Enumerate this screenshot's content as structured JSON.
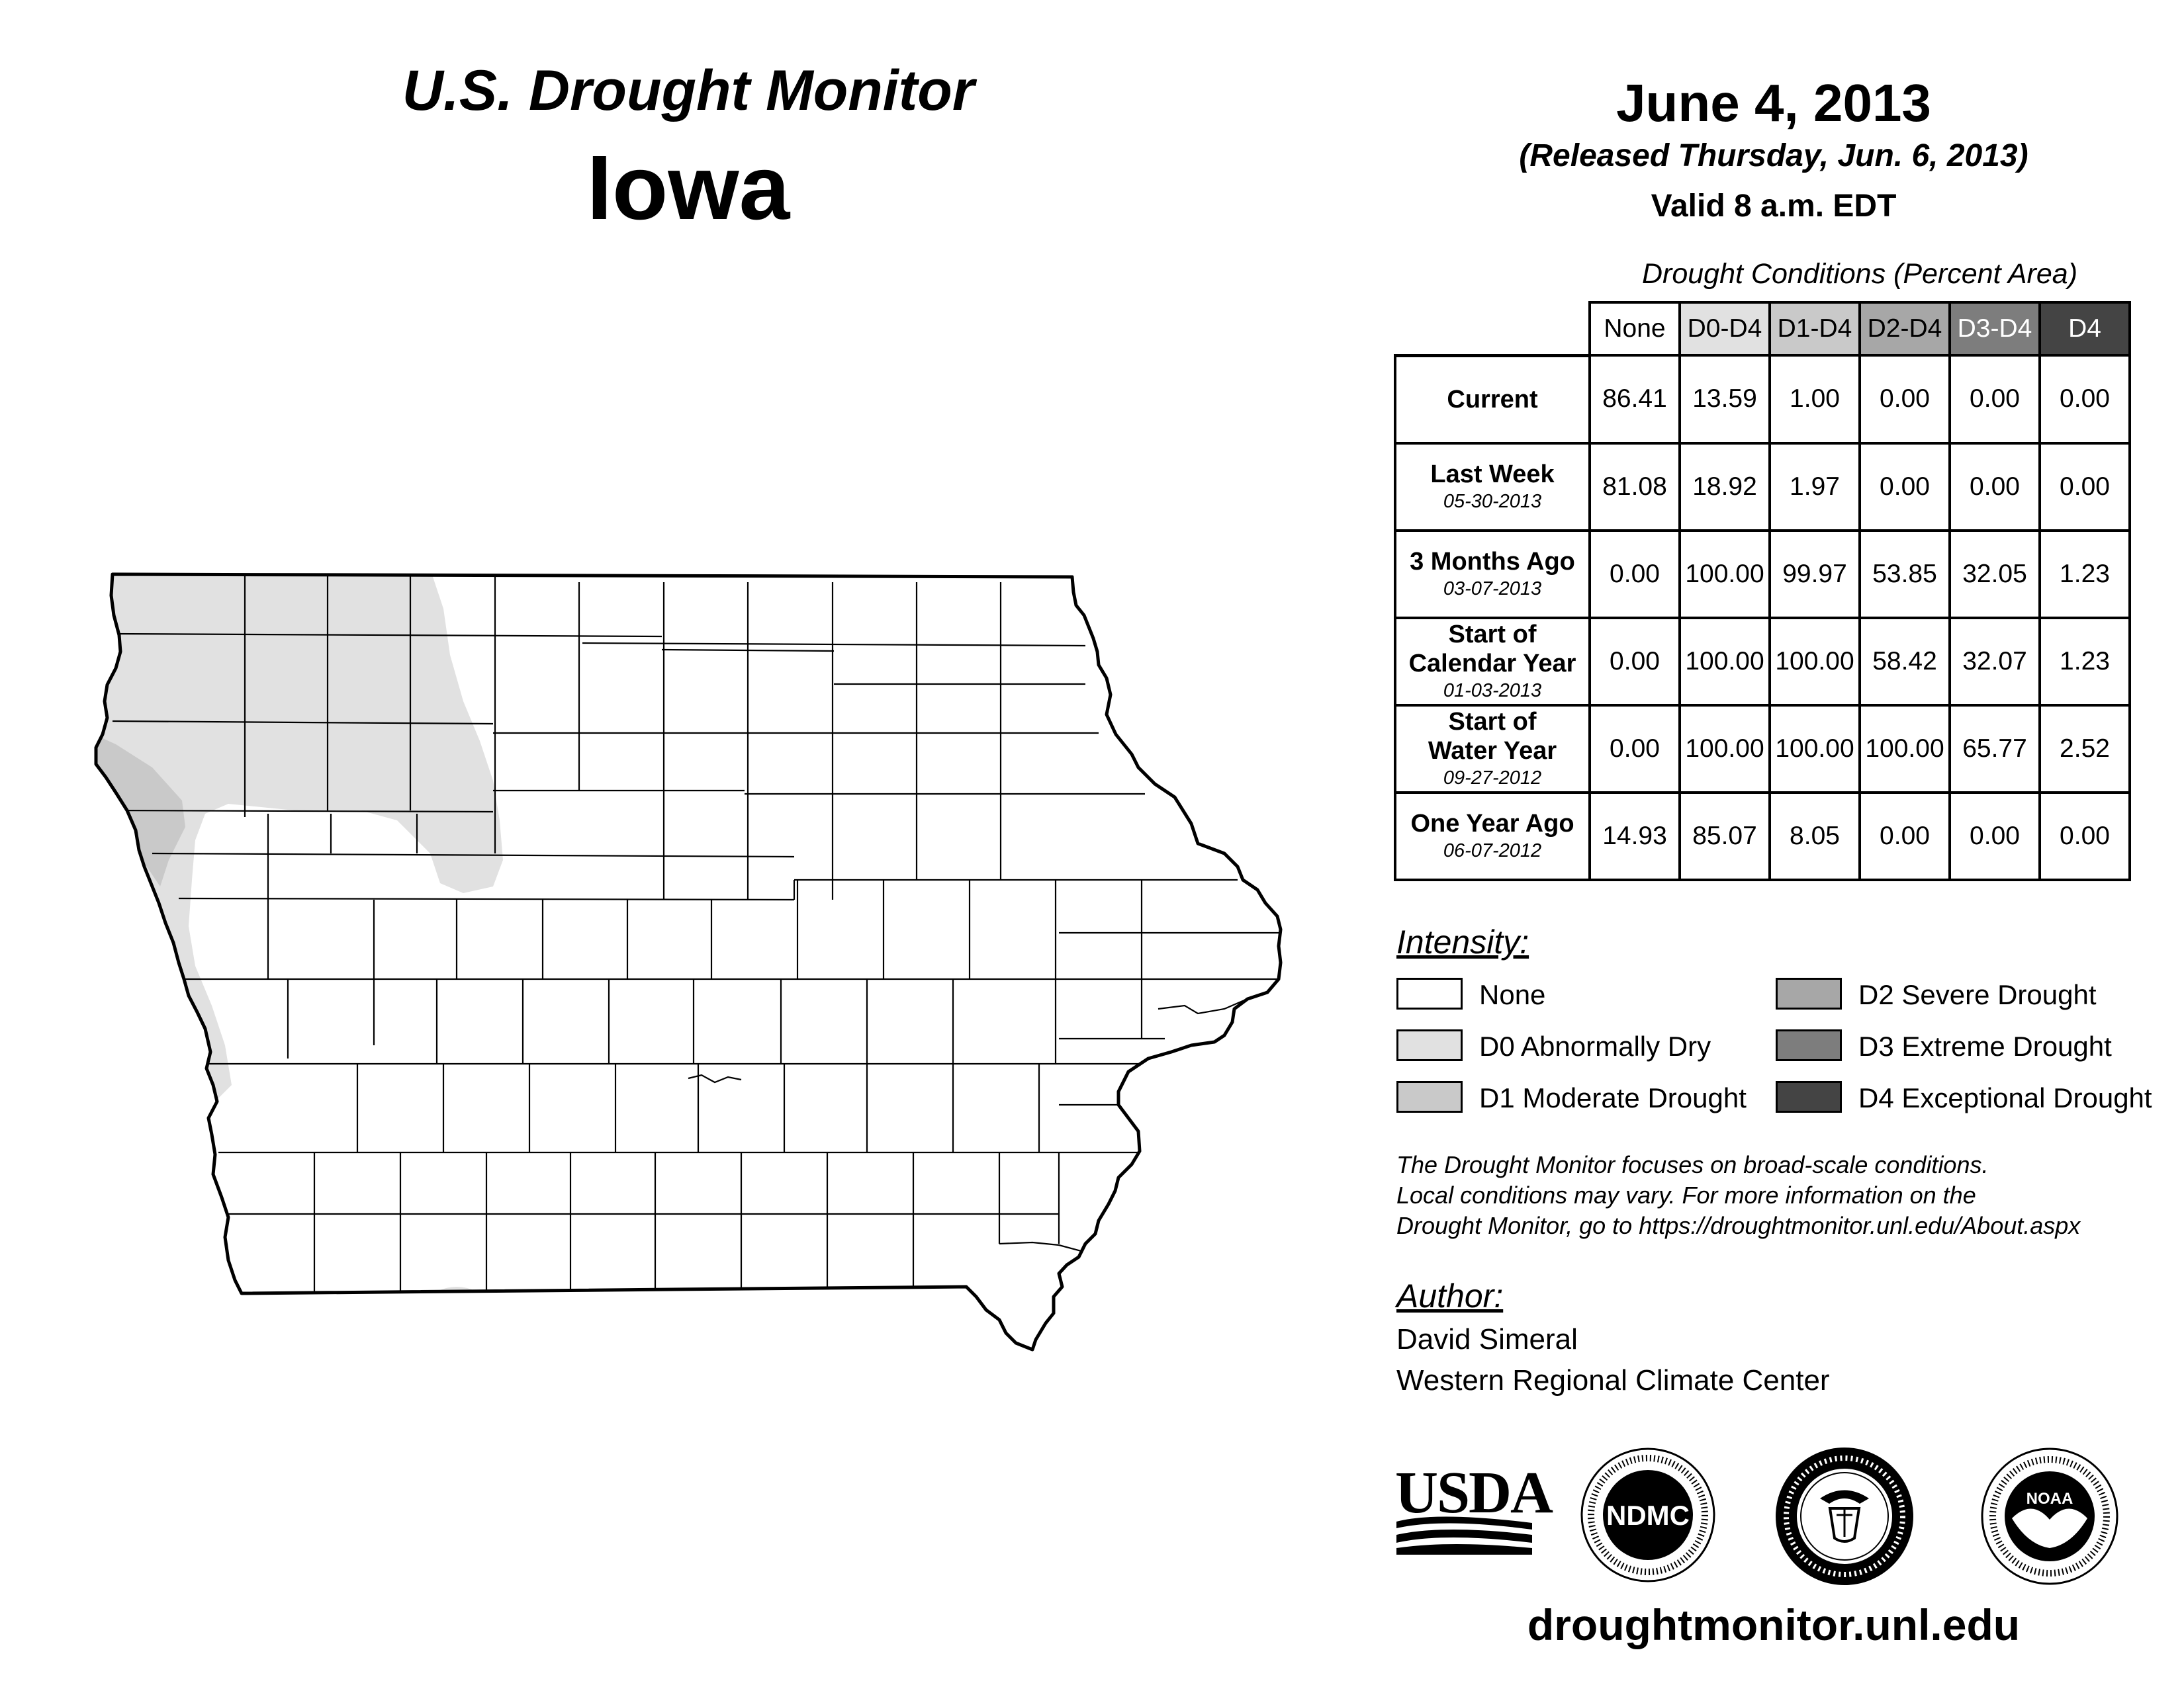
{
  "header": {
    "title": "U.S. Drought Monitor",
    "state": "Iowa",
    "date": "June 4, 2013",
    "released": "(Released Thursday, Jun. 6, 2013)",
    "valid": "Valid 8 a.m. EDT"
  },
  "table": {
    "caption": "Drought Conditions (Percent Area)",
    "columns": [
      "None",
      "D0-D4",
      "D1-D4",
      "D2-D4",
      "D3-D4",
      "D4"
    ],
    "rows": [
      {
        "label": "Current",
        "label2": "",
        "date": "",
        "values": [
          "86.41",
          "13.59",
          "1.00",
          "0.00",
          "0.00",
          "0.00"
        ]
      },
      {
        "label": "Last Week",
        "label2": "",
        "date": "05-30-2013",
        "values": [
          "81.08",
          "18.92",
          "1.97",
          "0.00",
          "0.00",
          "0.00"
        ]
      },
      {
        "label": "3 Months Ago",
        "label2": "",
        "date": "03-07-2013",
        "values": [
          "0.00",
          "100.00",
          "99.97",
          "53.85",
          "32.05",
          "1.23"
        ]
      },
      {
        "label": "Start of",
        "label2": "Calendar Year",
        "date": "01-03-2013",
        "values": [
          "0.00",
          "100.00",
          "100.00",
          "58.42",
          "32.07",
          "1.23"
        ]
      },
      {
        "label": "Start of",
        "label2": "Water Year",
        "date": "09-27-2012",
        "values": [
          "0.00",
          "100.00",
          "100.00",
          "100.00",
          "65.77",
          "2.52"
        ]
      },
      {
        "label": "One Year Ago",
        "label2": "",
        "date": "06-07-2012",
        "values": [
          "14.93",
          "85.07",
          "8.05",
          "0.00",
          "0.00",
          "0.00"
        ]
      }
    ]
  },
  "legend": {
    "title": "Intensity:",
    "items": [
      {
        "label": "None",
        "color": "#ffffff"
      },
      {
        "label": "D0 Abnormally Dry",
        "color": "#e1e1e1"
      },
      {
        "label": "D1 Moderate Drought",
        "color": "#c9c9c9"
      },
      {
        "label": "D2 Severe Drought",
        "color": "#a7a7a7"
      },
      {
        "label": "D3 Extreme Drought",
        "color": "#7d7d7d"
      },
      {
        "label": "D4 Exceptional Drought",
        "color": "#444444"
      }
    ]
  },
  "disclaimer": {
    "line1": "The Drought Monitor focuses on broad-scale conditions.",
    "line2": "Local conditions may vary. For more information on the",
    "line3": "Drought Monitor, go to https://droughtmonitor.unl.edu/About.aspx"
  },
  "author": {
    "title": "Author:",
    "name": "David Simeral",
    "org": "Western Regional Climate Center"
  },
  "logos": {
    "usda": "USDA",
    "ndmc": "NDMC",
    "noaa": "NOAA"
  },
  "footer": {
    "url": "droughtmonitor.unl.edu"
  }
}
